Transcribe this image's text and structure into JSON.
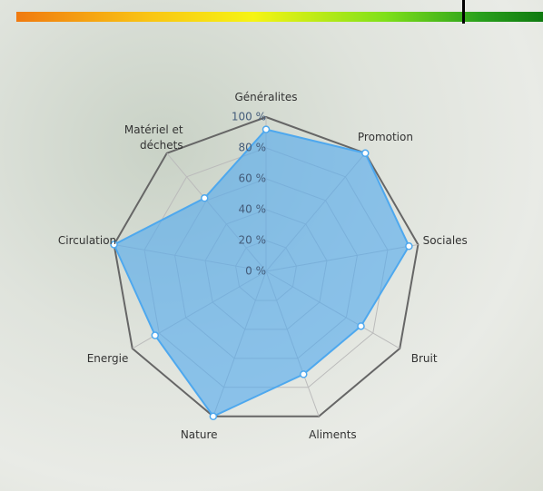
{
  "chart_data": {
    "type": "radar",
    "categories": [
      "Généralites",
      "Promotion",
      "Sociales",
      "Bruit",
      "Aliments",
      "Nature",
      "Energie",
      "Circulation",
      "Matériel et déchets"
    ],
    "series": [
      {
        "color": "#4ea8ee",
        "values": [
          92,
          100,
          94,
          71,
          71,
          100,
          83,
          100,
          62
        ]
      }
    ],
    "ylim": [
      0,
      100
    ],
    "yticks": [
      {
        "value": 0,
        "label": "0 %"
      },
      {
        "value": 20,
        "label": "20 %"
      },
      {
        "value": 40,
        "label": "40 %"
      },
      {
        "value": 60,
        "label": "60 %"
      },
      {
        "value": 80,
        "label": "80 %"
      },
      {
        "value": 100,
        "label": "100 %"
      }
    ],
    "grid": true
  }
}
